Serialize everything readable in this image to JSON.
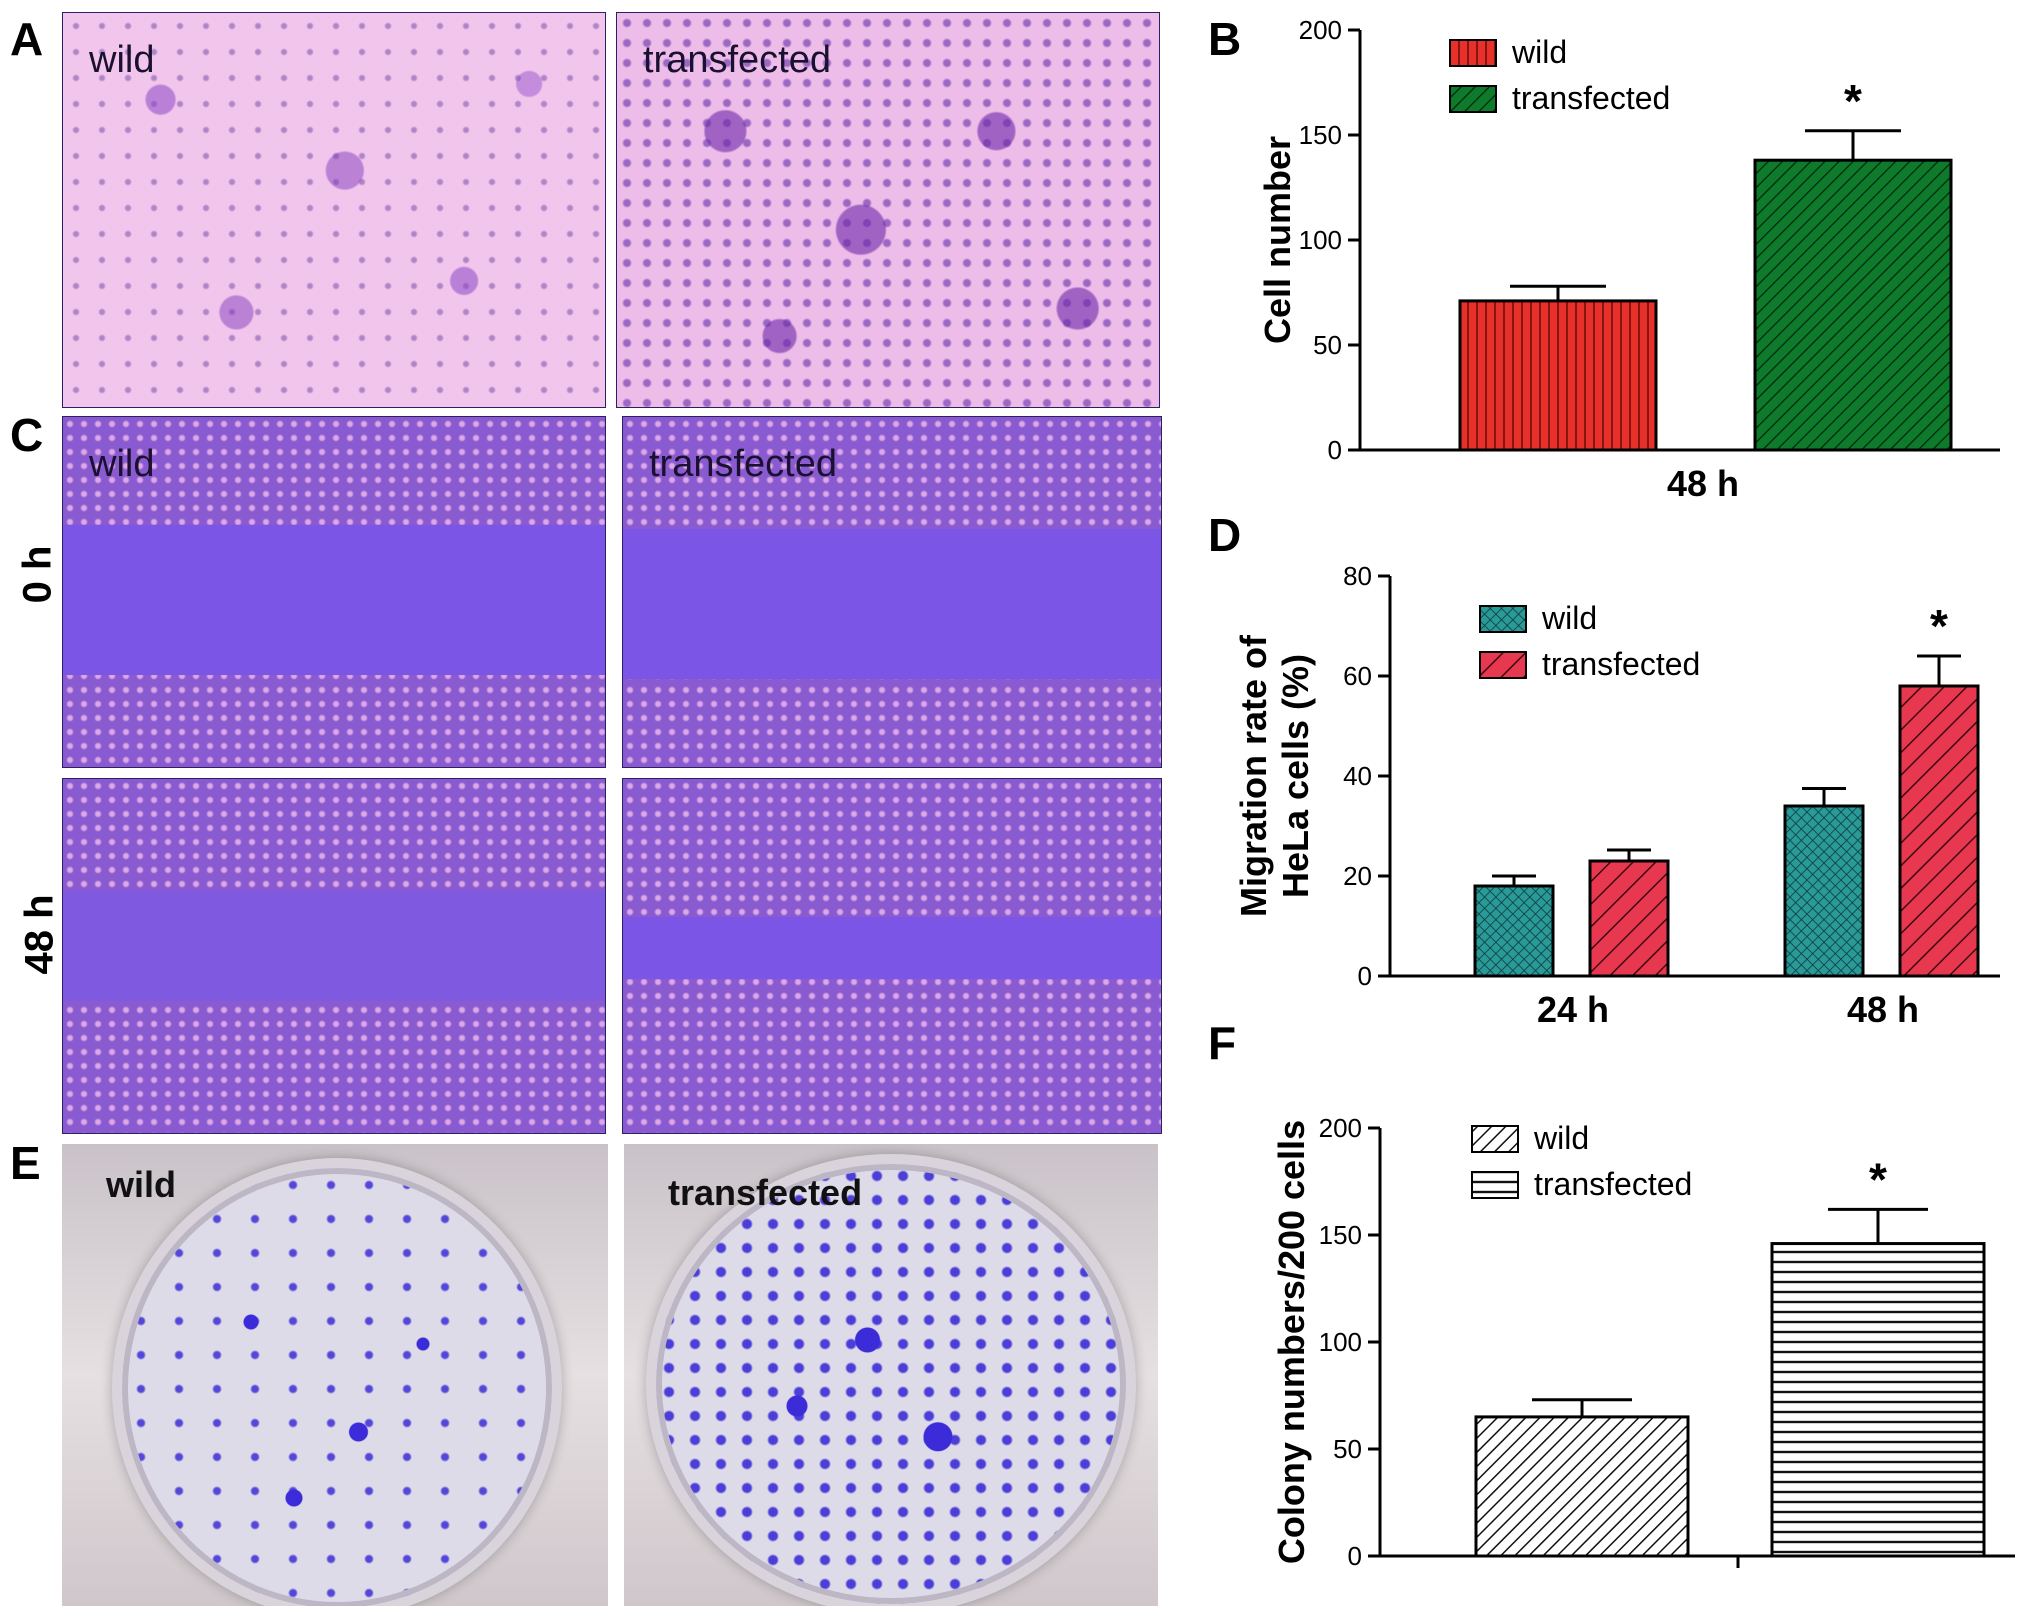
{
  "panels": {
    "A": {
      "letter": "A",
      "left_label": "wild",
      "right_label": "transfected"
    },
    "C": {
      "letter": "C",
      "left_label": "wild",
      "right_label": "transfected",
      "row_top": "0 h",
      "row_bottom": "48 h"
    },
    "E": {
      "letter": "E",
      "left_label": "wild",
      "right_label": "transfected"
    },
    "B": {
      "letter": "B"
    },
    "D": {
      "letter": "D"
    },
    "F": {
      "letter": "F"
    }
  },
  "chart_data": [
    {
      "id": "B",
      "type": "bar",
      "ylabel": "Cell number",
      "ylim": [
        0,
        200
      ],
      "yticks": [
        0,
        50,
        100,
        150,
        200
      ],
      "categories": [
        "48 h"
      ],
      "series": [
        {
          "name": "wild",
          "values": [
            71
          ],
          "errors": [
            7
          ],
          "color": "#e8302a",
          "pattern": "vertical"
        },
        {
          "name": "transfected",
          "values": [
            138
          ],
          "errors": [
            14
          ],
          "color": "#0e7a2c",
          "pattern": "diagonal"
        }
      ],
      "significance": [
        {
          "category": 0,
          "series": 1,
          "mark": "*"
        }
      ],
      "legend": "top-left"
    },
    {
      "id": "D",
      "type": "bar",
      "ylabel": "Migration rate of HeLa cells (%)",
      "ylabel_lines": [
        "Migration rate of",
        "HeLa cells (%)"
      ],
      "ylim": [
        0,
        80
      ],
      "yticks": [
        0,
        20,
        40,
        60,
        80
      ],
      "categories": [
        "24 h",
        "48 h"
      ],
      "series": [
        {
          "name": "wild",
          "values": [
            18,
            34
          ],
          "errors": [
            2,
            3.5
          ],
          "color": "#2a9a98",
          "pattern": "cross"
        },
        {
          "name": "transfected",
          "values": [
            23,
            58
          ],
          "errors": [
            2.2,
            6
          ],
          "color": "#e8384f",
          "pattern": "diagonal"
        }
      ],
      "significance": [
        {
          "category": 1,
          "series": 1,
          "mark": "*"
        }
      ],
      "legend": "top-left"
    },
    {
      "id": "F",
      "type": "bar",
      "ylabel": "Colony numbers/200 cells",
      "ylim": [
        0,
        200
      ],
      "yticks": [
        0,
        50,
        100,
        150,
        200
      ],
      "categories": [
        ""
      ],
      "series": [
        {
          "name": "wild",
          "values": [
            65
          ],
          "errors": [
            8
          ],
          "color": "#ffffff",
          "pattern": "diagonal-black"
        },
        {
          "name": "transfected",
          "values": [
            146
          ],
          "errors": [
            16
          ],
          "color": "#ffffff",
          "pattern": "horizontal-black"
        }
      ],
      "significance": [
        {
          "category": 0,
          "series": 1,
          "mark": "*"
        }
      ],
      "legend": "top-left"
    }
  ]
}
